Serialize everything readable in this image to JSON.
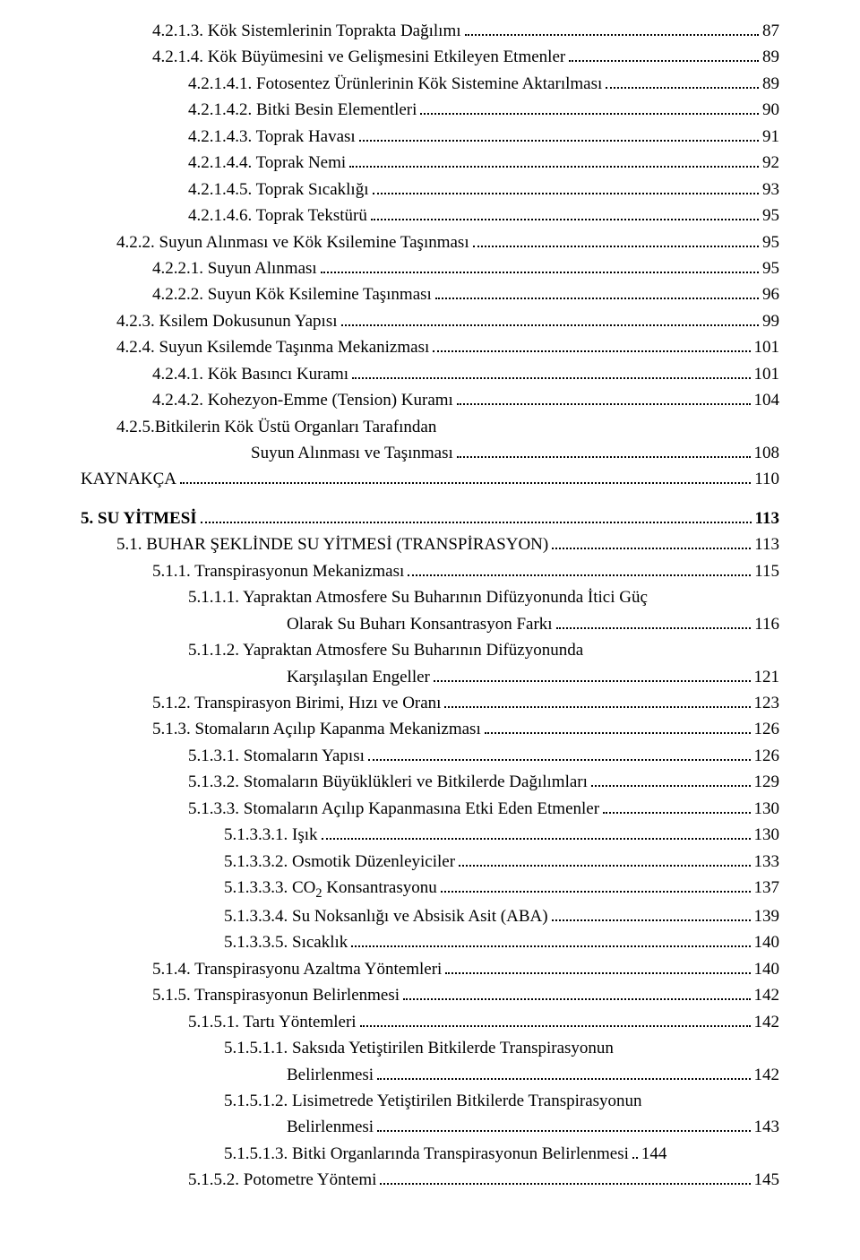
{
  "entries": [
    {
      "indent": 2,
      "text": "4.2.1.3. Kök Sistemlerinin Toprakta Dağılımı",
      "page": "87"
    },
    {
      "indent": 2,
      "text": "4.2.1.4. Kök Büyümesini ve Gelişmesini Etkileyen Etmenler",
      "page": "89"
    },
    {
      "indent": 3,
      "text": "4.2.1.4.1. Fotosentez Ürünlerinin Kök Sistemine Aktarılması",
      "page": "89"
    },
    {
      "indent": 3,
      "text": "4.2.1.4.2. Bitki Besin Elementleri",
      "page": "90"
    },
    {
      "indent": 3,
      "text": "4.2.1.4.3. Toprak Havası",
      "page": "91"
    },
    {
      "indent": 3,
      "text": "4.2.1.4.4. Toprak Nemi",
      "page": "92"
    },
    {
      "indent": 3,
      "text": "4.2.1.4.5. Toprak Sıcaklığı",
      "page": "93"
    },
    {
      "indent": 3,
      "text": "4.2.1.4.6. Toprak Tekstürü",
      "page": "95"
    },
    {
      "indent": 1,
      "text": "4.2.2. Suyun Alınması ve Kök Ksilemine Taşınması",
      "page": "95"
    },
    {
      "indent": 2,
      "text": "4.2.2.1. Suyun Alınması",
      "page": "95"
    },
    {
      "indent": 2,
      "text": "4.2.2.2. Suyun Kök Ksilemine Taşınması",
      "page": "96"
    },
    {
      "indent": 1,
      "text": "4.2.3. Ksilem Dokusunun Yapısı",
      "page": "99"
    },
    {
      "indent": 1,
      "text": "4.2.4. Suyun Ksilemde Taşınma Mekanizması",
      "page": "101"
    },
    {
      "indent": 2,
      "text": "4.2.4.1. Kök Basıncı Kuramı",
      "page": "101"
    },
    {
      "indent": 2,
      "text": "4.2.4.2. Kohezyon-Emme (Tension) Kuramı",
      "page": "104"
    },
    {
      "indent": 1,
      "text": "4.2.5.Bitkilerin Kök Üstü Organları Tarafından",
      "cont": true,
      "contText": "Suyun Alınması ve Taşınması",
      "contIndent": "cont3",
      "page": "108"
    },
    {
      "indent": 0,
      "text": "KAYNAKÇA",
      "page": "110"
    },
    {
      "blank": true
    },
    {
      "indent": 0,
      "bold": true,
      "text": "5. SU YİTMESİ",
      "page": "113"
    },
    {
      "indent": 1,
      "text": "5.1.  BUHAR ŞEKLİNDE SU YİTMESİ (TRANSPİRASYON)",
      "page": "113"
    },
    {
      "indent": 2,
      "text": "5.1.1. Transpirasyonun Mekanizması",
      "page": "115"
    },
    {
      "indent": 3,
      "text": "5.1.1.1. Yapraktan Atmosfere Su Buharının Difüzyonunda İtici Güç",
      "cont": true,
      "contText": "Olarak Su Buharı Konsantrasyon Farkı",
      "contIndent": "cont4",
      "page": "116"
    },
    {
      "indent": 3,
      "text": "5.1.1.2. Yapraktan Atmosfere Su Buharının Difüzyonunda",
      "cont": true,
      "contText": "Karşılaşılan Engeller",
      "contIndent": "cont4",
      "page": "121"
    },
    {
      "indent": 2,
      "text": "5.1.2. Transpirasyon Birimi, Hızı ve Oranı",
      "page": "123"
    },
    {
      "indent": 2,
      "text": "5.1.3. Stomaların Açılıp Kapanma Mekanizması",
      "page": "126"
    },
    {
      "indent": 3,
      "text": "5.1.3.1. Stomaların Yapısı",
      "page": "126"
    },
    {
      "indent": 3,
      "text": "5.1.3.2. Stomaların Büyüklükleri ve Bitkilerde Dağılımları",
      "page": "129"
    },
    {
      "indent": 3,
      "text": "5.1.3.3. Stomaların Açılıp Kapanmasına Etki Eden Etmenler",
      "page": "130"
    },
    {
      "indent": 4,
      "text": "5.1.3.3.1. Işık",
      "page": "130"
    },
    {
      "indent": 4,
      "text": "5.1.3.3.2. Osmotik Düzenleyiciler",
      "page": "133"
    },
    {
      "indent": 4,
      "html": "5.1.3.3.3. CO<span class=\"sub\">2</span> Konsantrasyonu",
      "page": "137"
    },
    {
      "indent": 4,
      "text": "5.1.3.3.4. Su Noksanlığı ve Absisik Asit (ABA)",
      "page": "139"
    },
    {
      "indent": 4,
      "text": "5.1.3.3.5. Sıcaklık",
      "page": "140"
    },
    {
      "indent": 2,
      "text": "5.1.4. Transpirasyonu Azaltma Yöntemleri",
      "page": "140"
    },
    {
      "indent": 2,
      "text": "5.1.5. Transpirasyonun Belirlenmesi",
      "page": "142"
    },
    {
      "indent": 3,
      "text": "5.1.5.1. Tartı Yöntemleri",
      "page": "142"
    },
    {
      "indent": 4,
      "text": "5.1.5.1.1. Saksıda Yetiştirilen Bitkilerde Transpirasyonun",
      "cont": true,
      "contText": "Belirlenmesi",
      "contIndent": "cont4",
      "page": "142"
    },
    {
      "indent": 4,
      "text": "5.1.5.1.2. Lisimetrede Yetiştirilen Bitkilerde Transpirasyonun",
      "cont": true,
      "contText": "Belirlenmesi",
      "contIndent": "cont4",
      "page": "143"
    },
    {
      "indent": 4,
      "text": "5.1.5.1.3. Bitki Organlarında Transpirasyonun Belirlenmesi",
      "page": "144",
      "tight": true
    },
    {
      "indent": 3,
      "text": "5.1.5.2. Potometre Yöntemi",
      "page": "145"
    }
  ]
}
